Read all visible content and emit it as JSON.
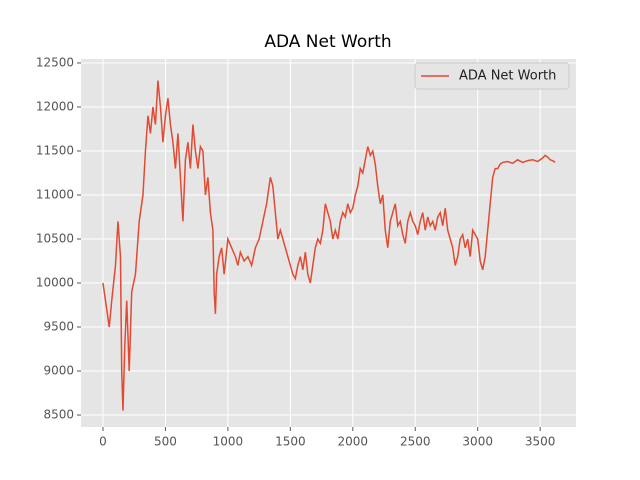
{
  "chart_data": {
    "type": "line",
    "title": "ADA Net Worth",
    "x": [
      0,
      30,
      50,
      70,
      100,
      120,
      140,
      150,
      160,
      175,
      190,
      210,
      230,
      260,
      290,
      320,
      340,
      360,
      380,
      400,
      420,
      440,
      460,
      480,
      500,
      520,
      540,
      560,
      580,
      600,
      620,
      640,
      660,
      680,
      700,
      720,
      740,
      760,
      780,
      800,
      820,
      840,
      860,
      880,
      890,
      900,
      910,
      930,
      950,
      970,
      1000,
      1030,
      1060,
      1080,
      1100,
      1130,
      1160,
      1190,
      1220,
      1250,
      1280,
      1310,
      1340,
      1360,
      1380,
      1400,
      1420,
      1440,
      1460,
      1480,
      1500,
      1520,
      1540,
      1560,
      1580,
      1600,
      1620,
      1640,
      1660,
      1680,
      1700,
      1720,
      1740,
      1760,
      1780,
      1800,
      1820,
      1840,
      1860,
      1880,
      1900,
      1920,
      1940,
      1960,
      1980,
      2000,
      2020,
      2040,
      2060,
      2080,
      2100,
      2120,
      2140,
      2160,
      2180,
      2200,
      2220,
      2240,
      2260,
      2280,
      2300,
      2320,
      2340,
      2360,
      2380,
      2400,
      2420,
      2440,
      2460,
      2480,
      2500,
      2520,
      2540,
      2560,
      2580,
      2600,
      2620,
      2640,
      2660,
      2680,
      2700,
      2720,
      2740,
      2760,
      2780,
      2800,
      2820,
      2840,
      2860,
      2880,
      2900,
      2920,
      2940,
      2960,
      2980,
      3000,
      3020,
      3040,
      3060,
      3080,
      3100,
      3120,
      3140,
      3160,
      3180,
      3200,
      3240,
      3280,
      3320,
      3360,
      3400,
      3440,
      3480,
      3520,
      3540,
      3560,
      3580,
      3600,
      3620
    ],
    "series": [
      {
        "name": "ADA Net Worth",
        "color": "#e24a33",
        "values": [
          10000,
          9700,
          9500,
          9800,
          10200,
          10700,
          10300,
          9000,
          8550,
          9300,
          9800,
          9000,
          9900,
          10100,
          10700,
          11000,
          11500,
          11900,
          11700,
          12000,
          11800,
          12300,
          12000,
          11600,
          11900,
          12100,
          11800,
          11600,
          11300,
          11700,
          11200,
          10700,
          11400,
          11600,
          11300,
          11800,
          11500,
          11300,
          11550,
          11500,
          11000,
          11200,
          10800,
          10600,
          9900,
          9650,
          10100,
          10300,
          10400,
          10100,
          10500,
          10400,
          10300,
          10200,
          10350,
          10250,
          10300,
          10200,
          10400,
          10500,
          10700,
          10900,
          11200,
          11100,
          10800,
          10500,
          10600,
          10500,
          10400,
          10300,
          10200,
          10100,
          10050,
          10200,
          10300,
          10150,
          10350,
          10100,
          10000,
          10200,
          10400,
          10500,
          10450,
          10600,
          10900,
          10800,
          10700,
          10500,
          10600,
          10500,
          10700,
          10800,
          10750,
          10900,
          10800,
          10850,
          11000,
          11100,
          11300,
          11250,
          11400,
          11550,
          11450,
          11500,
          11350,
          11100,
          10900,
          11000,
          10600,
          10400,
          10700,
          10800,
          10900,
          10650,
          10700,
          10550,
          10450,
          10700,
          10800,
          10700,
          10650,
          10550,
          10700,
          10800,
          10600,
          10750,
          10650,
          10700,
          10600,
          10750,
          10800,
          10650,
          10850,
          10600,
          10500,
          10400,
          10200,
          10300,
          10500,
          10550,
          10400,
          10500,
          10300,
          10600,
          10550,
          10500,
          10250,
          10150,
          10300,
          10600,
          10900,
          11200,
          11300,
          11300,
          11350,
          11370,
          11380,
          11360,
          11400,
          11370,
          11390,
          11400,
          11380,
          11420,
          11450,
          11430,
          11400,
          11390,
          11370
        ]
      }
    ],
    "xlim": [
      -176,
      3787
    ],
    "ylim": [
      8364,
      12545
    ],
    "xticks": [
      0,
      500,
      1000,
      1500,
      2000,
      2500,
      3000,
      3500
    ],
    "yticks": [
      8500,
      9000,
      9500,
      10000,
      10500,
      11000,
      11500,
      12000,
      12500
    ],
    "grid": true,
    "legend": "upper right"
  }
}
